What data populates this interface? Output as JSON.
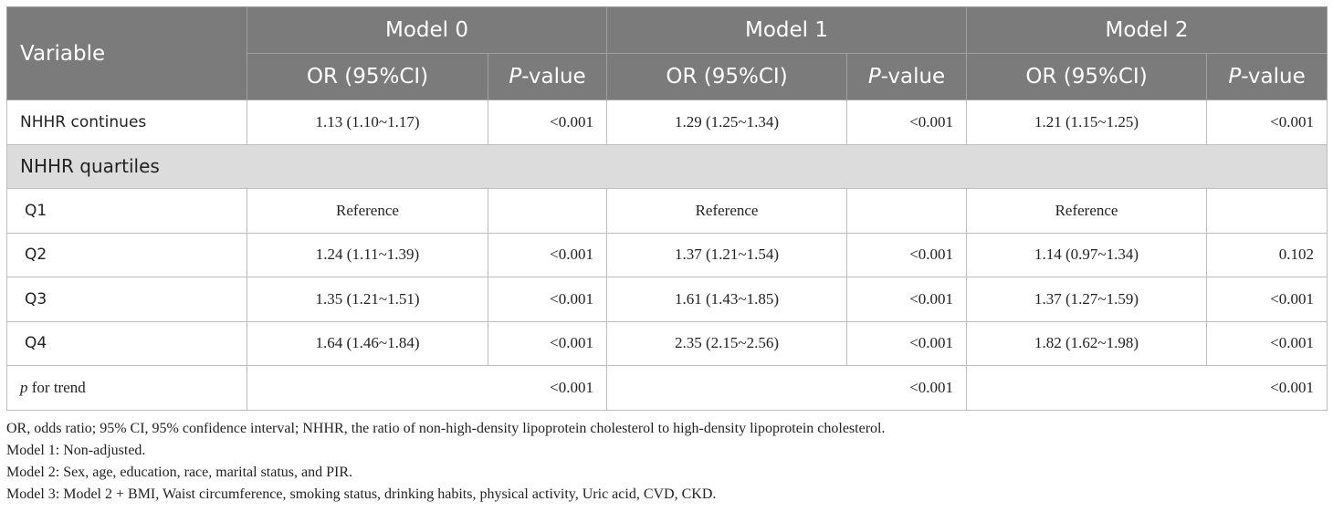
{
  "header": {
    "variable": "Variable",
    "models": [
      "Model 0",
      "Model 1",
      "Model 2"
    ],
    "or_label": "OR (95%CI)",
    "p_prefix": "P",
    "p_suffix": "-value"
  },
  "rows": {
    "continuous": {
      "label": "NHHR continues",
      "cells": [
        "1.13 (1.10~1.17)",
        "<0.001",
        "1.29 (1.25~1.34)",
        "<0.001",
        "1.21 (1.15~1.25)",
        "<0.001"
      ]
    },
    "section": "NHHR quartiles",
    "q1": {
      "label": "Q1",
      "ref": [
        "Reference",
        "Reference",
        "Reference"
      ]
    },
    "q2": {
      "label": "Q2",
      "cells": [
        "1.24 (1.11~1.39)",
        "<0.001",
        "1.37 (1.21~1.54)",
        "<0.001",
        "1.14 (0.97~1.34)",
        "0.102"
      ]
    },
    "q3": {
      "label": "Q3",
      "cells": [
        "1.35 (1.21~1.51)",
        "<0.001",
        "1.61 (1.43~1.85)",
        "<0.001",
        "1.37 (1.27~1.59)",
        "<0.001"
      ]
    },
    "q4": {
      "label": "Q4",
      "cells": [
        "1.64 (1.46~1.84)",
        "<0.001",
        "2.35 (2.15~2.56)",
        "<0.001",
        "1.82 (1.62~1.98)",
        "<0.001"
      ]
    },
    "trend": {
      "label_p": "p",
      "label_rest": " for trend",
      "cells": [
        "<0.001",
        "<0.001",
        "<0.001"
      ]
    }
  },
  "notes": [
    "OR, odds ratio; 95% CI, 95% confidence interval; NHHR, the ratio of non-high-density lipoprotein cholesterol to high-density lipoprotein cholesterol.",
    "Model 1: Non-adjusted.",
    "Model 2: Sex, age, education, race, marital status, and PIR.",
    "Model 3: Model 2 + BMI, Waist circumference, smoking status, drinking habits, physical activity, Uric acid, CVD, CKD."
  ]
}
